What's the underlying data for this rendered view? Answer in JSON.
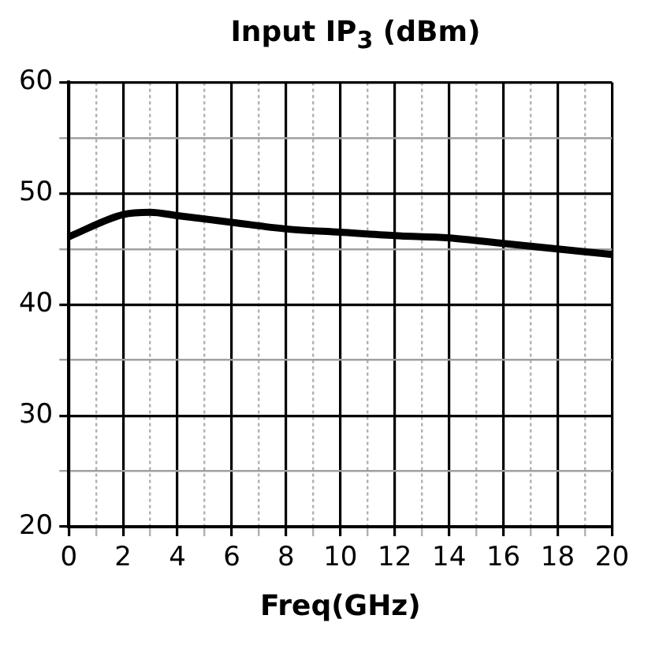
{
  "chart_data": {
    "type": "line",
    "title": "Input IP$_{3}$ (dBm)",
    "xlabel": "Freq(GHz)",
    "x": [
      0,
      2,
      3,
      4,
      6,
      8,
      10,
      12,
      14,
      16,
      18,
      20
    ],
    "series": [
      {
        "color": "#000000",
        "values": [
          46.1,
          48.1,
          48.3,
          48.0,
          47.4,
          46.8,
          46.5,
          46.2,
          46.0,
          45.5,
          45.0,
          44.5
        ]
      }
    ],
    "xlim": [
      0,
      20
    ],
    "xticks": [
      0,
      {
        "value": 1,
        "label": null
      },
      2,
      {
        "value": 3,
        "label": null
      },
      4,
      {
        "value": 5,
        "label": null
      },
      6,
      {
        "value": 7,
        "label": null
      },
      8,
      {
        "value": 9,
        "label": null
      },
      10,
      {
        "value": 11,
        "label": null
      },
      12,
      {
        "value": 13,
        "label": null
      },
      14,
      {
        "value": 15,
        "label": null
      },
      16,
      {
        "value": 17,
        "label": null
      },
      18,
      {
        "value": 19,
        "label": null
      },
      20
    ],
    "ylim": [
      20,
      60
    ],
    "yticks": [
      20,
      {
        "value": 25,
        "label": null
      },
      30,
      {
        "value": 35,
        "label": null
      },
      40,
      {
        "value": 45,
        "label": null
      },
      50,
      {
        "value": 55,
        "label": null
      },
      60
    ],
    "grid": true,
    "legend": false,
    "marker": "none",
    "line_style": "solid"
  }
}
